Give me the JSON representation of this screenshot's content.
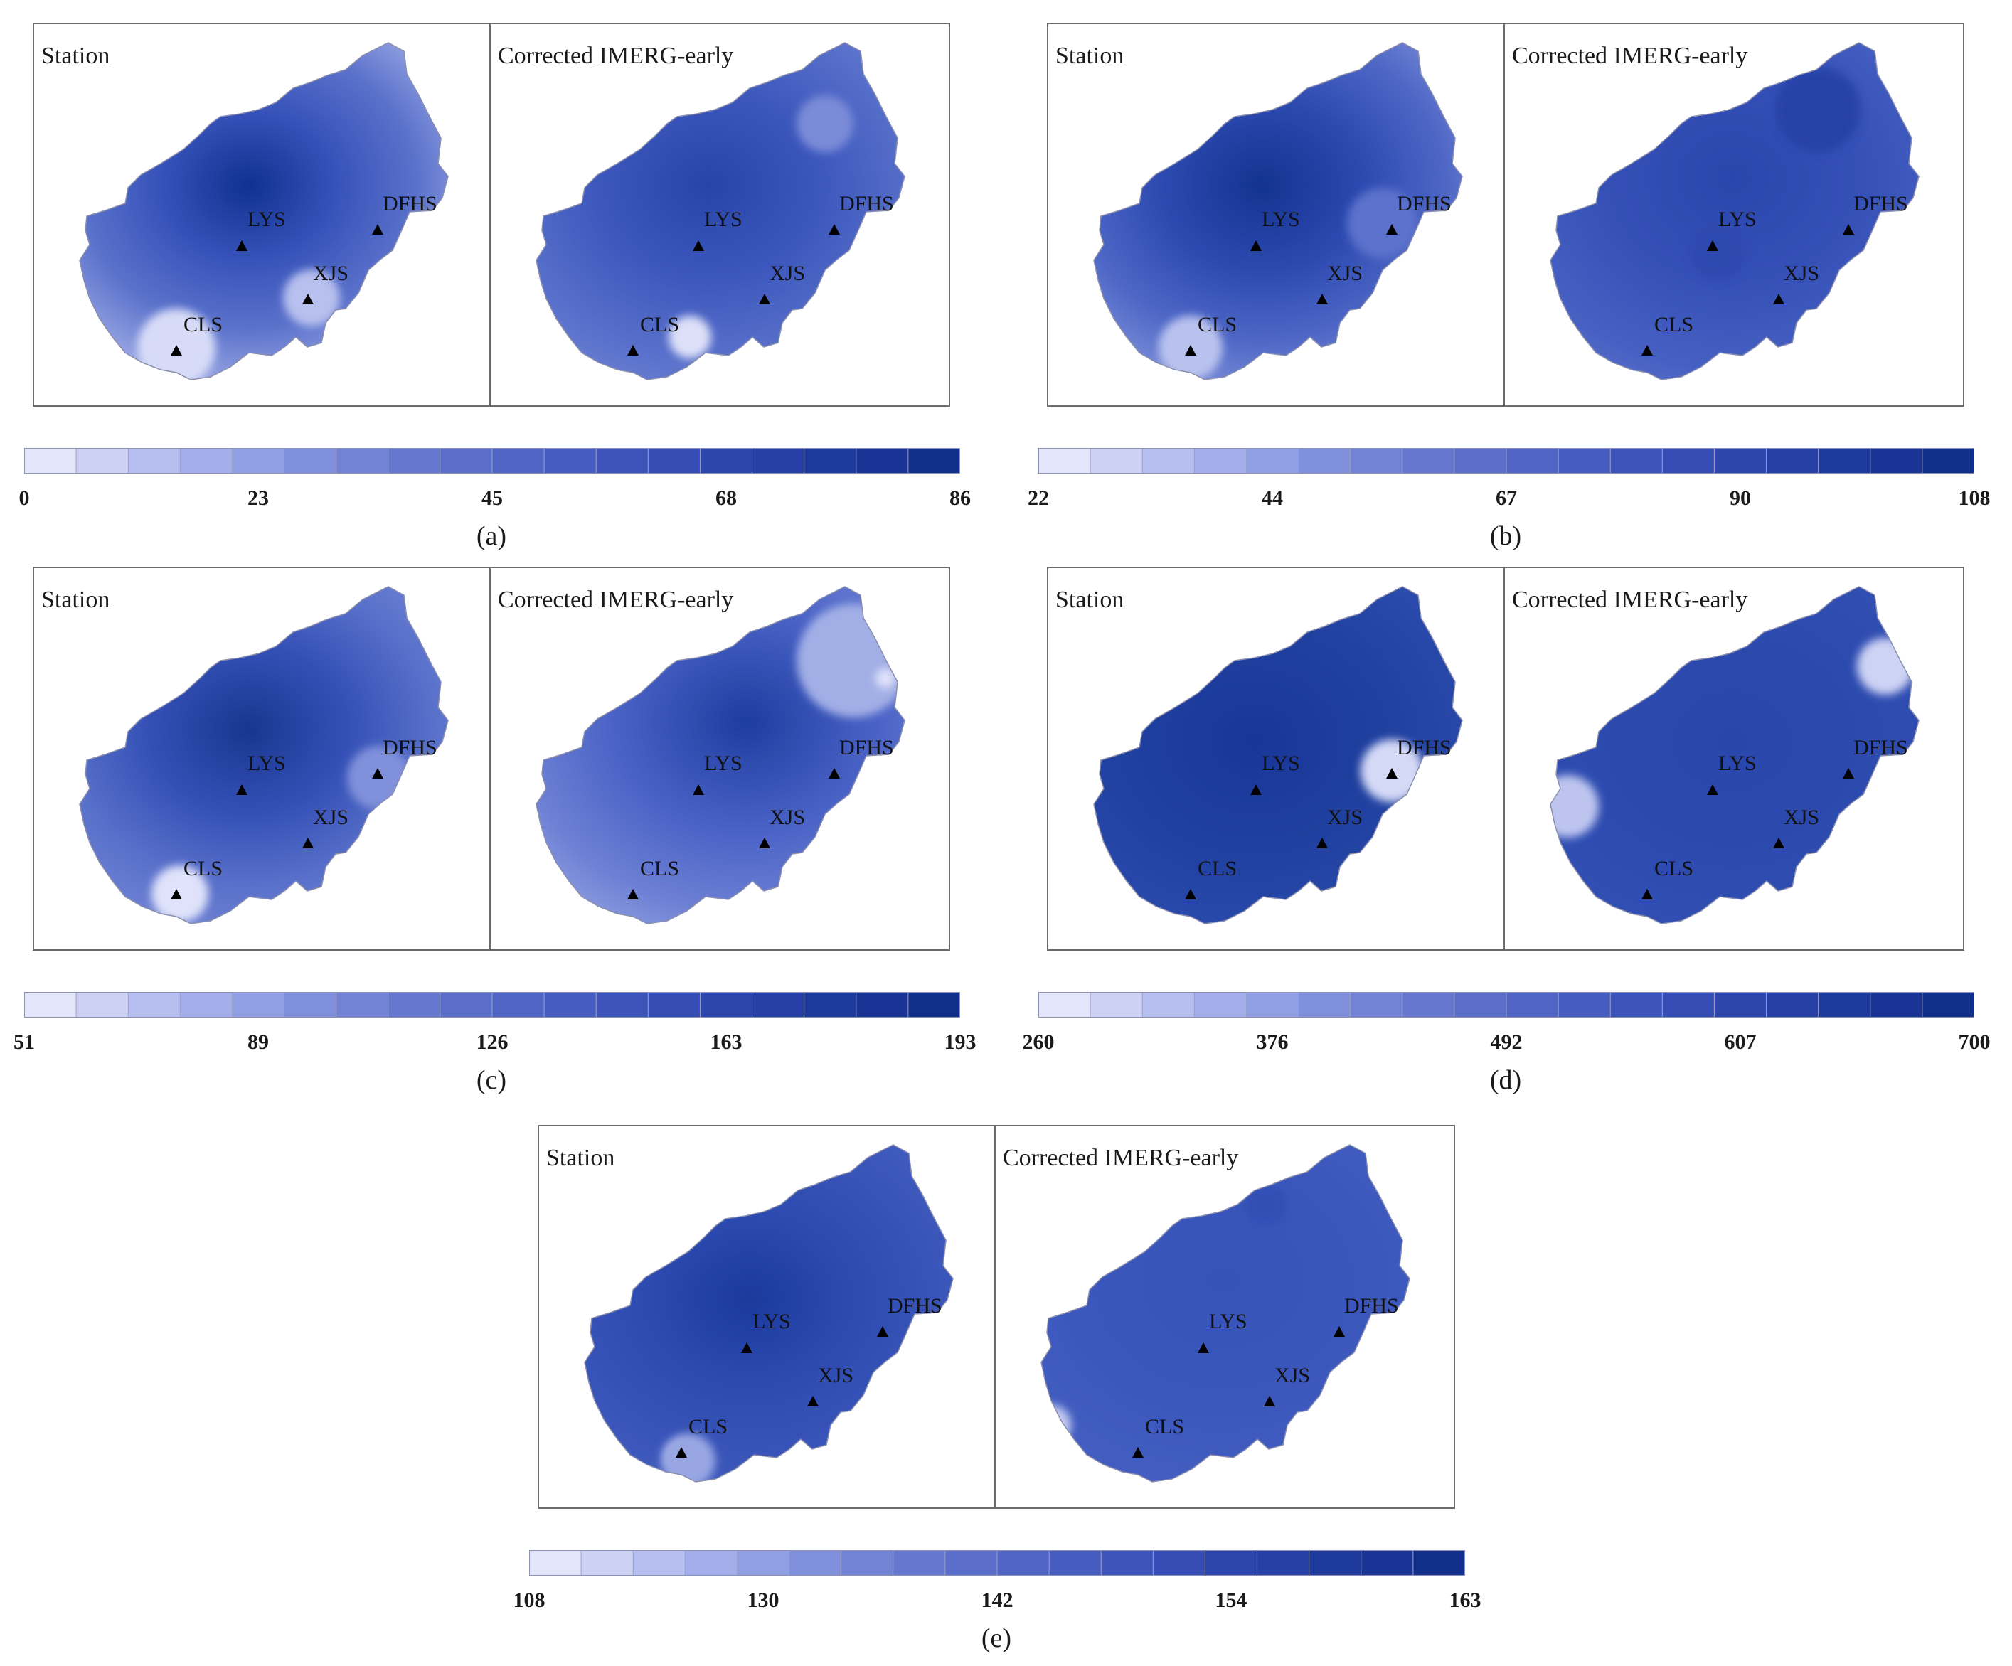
{
  "figure": {
    "panels": [
      {
        "id": "a",
        "caption": "(a)",
        "left_title": "Station",
        "right_title": "Corrected IMERG-early",
        "colorbar_ticks": [
          "0",
          "23",
          "45",
          "68",
          "86"
        ],
        "colorbar_range": [
          0,
          86
        ]
      },
      {
        "id": "b",
        "caption": "(b)",
        "left_title": "Station",
        "right_title": "Corrected IMERG-early",
        "colorbar_ticks": [
          "22",
          "44",
          "67",
          "90",
          "108"
        ],
        "colorbar_range": [
          22,
          108
        ]
      },
      {
        "id": "c",
        "caption": "(c)",
        "left_title": "Station",
        "right_title": "Corrected IMERG-early",
        "colorbar_ticks": [
          "51",
          "89",
          "126",
          "163",
          "193"
        ],
        "colorbar_range": [
          51,
          193
        ]
      },
      {
        "id": "d",
        "caption": "(d)",
        "left_title": "Station",
        "right_title": "Corrected IMERG-early",
        "colorbar_ticks": [
          "260",
          "376",
          "492",
          "607",
          "700"
        ],
        "colorbar_range": [
          260,
          700
        ]
      },
      {
        "id": "e",
        "caption": "(e)",
        "left_title": "Station",
        "right_title": "Corrected IMERG-early",
        "colorbar_ticks": [
          "108",
          "130",
          "142",
          "154",
          "163"
        ],
        "colorbar_range": [
          108,
          163
        ]
      }
    ],
    "stations": [
      "LYS",
      "DFHS",
      "XJS",
      "CLS"
    ],
    "colors": {
      "low": "#e2e4fa",
      "mid": "#4a62c8",
      "high": "#0e2f8e",
      "frame": "#6b6b6b"
    }
  }
}
